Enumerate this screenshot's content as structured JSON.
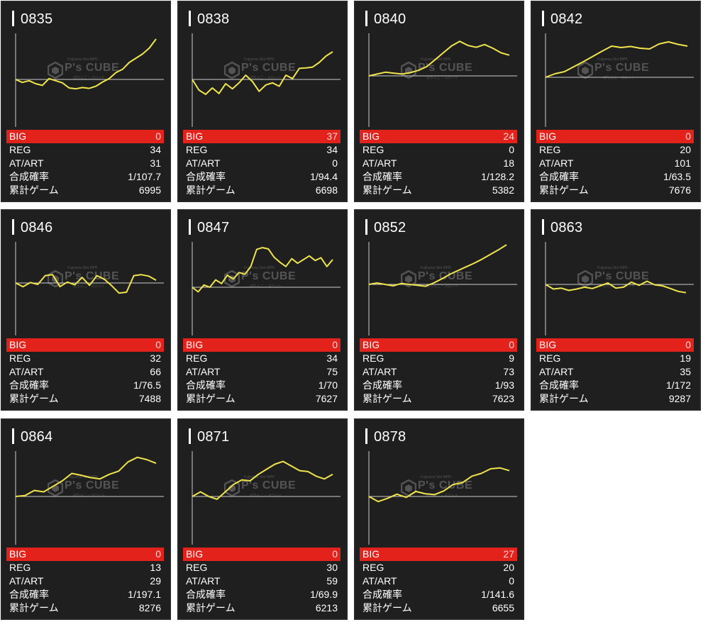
{
  "labels": {
    "big": "BIG",
    "reg": "REG",
    "at_art": "AT/ART",
    "combined_rate": "合成確率",
    "total_games": "累計ゲーム"
  },
  "watermark": {
    "brand": "P's CUBE",
    "top_text": "Fujiyama Slot MPR",
    "bottom_text": "ぱちんこ・スロット"
  },
  "colors": {
    "card_bg": "#1f1f1f",
    "big_bar": "#e3221b",
    "line": "#f0e44c",
    "baseline": "#cccccc"
  },
  "machines": [
    {
      "number": "0835",
      "big": "0",
      "reg": "34",
      "at_art": "31",
      "rate": "1/107.7",
      "games": "6995",
      "chart_data": {
        "type": "line",
        "values": [
          0,
          -0.7,
          -0.3,
          -1.0,
          -1.4,
          0.2,
          -0.3,
          -0.8,
          -2.0,
          -2.2,
          -1.9,
          -2.1,
          -1.6,
          -0.6,
          0.2,
          1.6,
          2.4,
          4.0,
          5.0,
          6.0,
          7.4,
          9.5
        ]
      }
    },
    {
      "number": "0838",
      "big": "37",
      "reg": "34",
      "at_art": "0",
      "rate": "1/94.4",
      "games": "6698",
      "chart_data": {
        "type": "line",
        "values": [
          0,
          -2.5,
          -3.5,
          -2.0,
          -3.3,
          -1.0,
          -2.2,
          -0.8,
          1.0,
          -0.5,
          -2.8,
          -1.3,
          -0.8,
          -1.6,
          1.0,
          0.2,
          2.6,
          2.7,
          2.9,
          4.0,
          5.5,
          6.5
        ]
      }
    },
    {
      "number": "0840",
      "big": "24",
      "reg": "0",
      "at_art": "18",
      "rate": "1/128.2",
      "games": "5382",
      "chart_data": {
        "type": "line",
        "values": [
          0,
          0.4,
          0.8,
          0.6,
          0.4,
          0.7,
          1.2,
          2.0,
          3.5,
          5.0,
          6.5,
          7.5,
          6.6,
          6.2,
          6.8,
          6.0,
          5.0,
          4.5
        ]
      }
    },
    {
      "number": "0842",
      "big": "0",
      "reg": "20",
      "at_art": "101",
      "rate": "1/63.5",
      "games": "7676",
      "chart_data": {
        "type": "line",
        "values": [
          0,
          1,
          1.6,
          3,
          4.4,
          5.9,
          7.4,
          8.8,
          8.4,
          8.7,
          8.2,
          8.0,
          9.4,
          10.0,
          9.3,
          8.8
        ]
      }
    },
    {
      "number": "0846",
      "big": "0",
      "reg": "32",
      "at_art": "66",
      "rate": "1/76.5",
      "games": "7488",
      "chart_data": {
        "type": "line",
        "values": [
          0,
          -0.8,
          0.1,
          -0.3,
          1.6,
          1.8,
          -0.8,
          0.2,
          -0.4,
          1.2,
          -0.5,
          1.6,
          0.8,
          -0.6,
          -2.2,
          -2.0,
          1.6,
          1.8,
          1.5,
          0.6
        ]
      }
    },
    {
      "number": "0847",
      "big": "0",
      "reg": "34",
      "at_art": "75",
      "rate": "1/70",
      "games": "7627",
      "chart_data": {
        "type": "line",
        "values": [
          0,
          -1.0,
          0.5,
          0.0,
          1.6,
          0.8,
          2.6,
          1.8,
          3.2,
          2.8,
          4.5,
          8.2,
          8.6,
          8.3,
          6.5,
          5.4,
          4.5,
          6.2,
          5.2,
          6.0,
          6.8,
          5.8,
          6.4,
          4.5,
          6.0
        ]
      }
    },
    {
      "number": "0852",
      "big": "0",
      "reg": "9",
      "at_art": "73",
      "rate": "1/93",
      "games": "7623",
      "chart_data": {
        "type": "line",
        "values": [
          0,
          0.3,
          0,
          -0.3,
          0.2,
          0,
          -0.2,
          -0.4,
          0.3,
          1.2,
          2.2,
          3.0,
          3.8,
          4.6,
          5.5,
          6.5,
          7.5,
          8.6
        ]
      }
    },
    {
      "number": "0863",
      "big": "0",
      "reg": "19",
      "at_art": "35",
      "rate": "1/172",
      "games": "9287",
      "chart_data": {
        "type": "line",
        "values": [
          0,
          -1.0,
          -0.8,
          -1.3,
          -1.0,
          -0.6,
          -0.9,
          -0.3,
          0.3,
          -0.8,
          -0.6,
          0.5,
          -0.2,
          0.7,
          -0.1,
          -0.3,
          -0.9,
          -1.5,
          -1.8
        ]
      }
    },
    {
      "number": "0864",
      "big": "0",
      "reg": "13",
      "at_art": "29",
      "rate": "1/197.1",
      "games": "8276",
      "chart_data": {
        "type": "line",
        "values": [
          0,
          0.2,
          1.3,
          1.0,
          2.2,
          3.4,
          5.0,
          4.6,
          4.1,
          3.8,
          4.8,
          5.5,
          7.5,
          8.5,
          8.0,
          7.2
        ]
      }
    },
    {
      "number": "0871",
      "big": "0",
      "reg": "30",
      "at_art": "59",
      "rate": "1/69.9",
      "games": "6213",
      "chart_data": {
        "type": "line",
        "values": [
          0,
          1.0,
          0.0,
          -0.6,
          1.0,
          2.6,
          3.6,
          3.4,
          4.8,
          5.9,
          7.0,
          7.6,
          6.6,
          5.6,
          5.4,
          4.4,
          3.8,
          4.8
        ]
      }
    },
    {
      "number": "0878",
      "big": "27",
      "reg": "20",
      "at_art": "0",
      "rate": "1/141.6",
      "games": "6655",
      "chart_data": {
        "type": "line",
        "values": [
          0,
          -1.1,
          -0.4,
          0.5,
          -0.2,
          1.1,
          0.6,
          0.4,
          1.2,
          2.6,
          3.0,
          4.4,
          5.0,
          6.0,
          6.2,
          5.6
        ]
      }
    }
  ]
}
